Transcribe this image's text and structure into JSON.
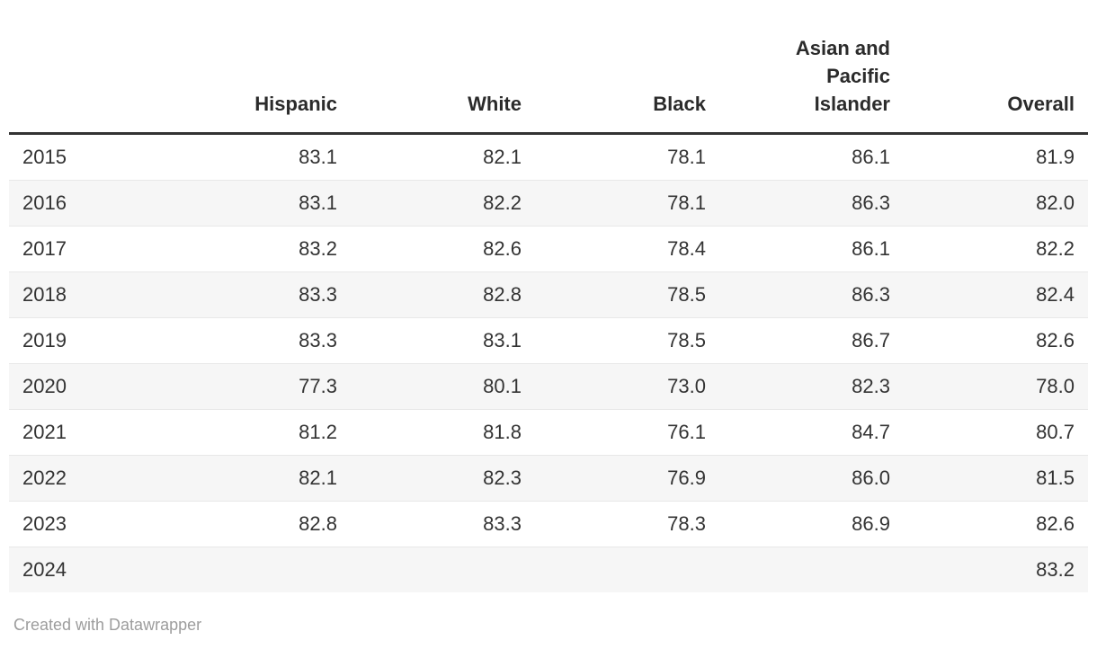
{
  "table": {
    "columns": [
      "",
      "Hispanic",
      "White",
      "Black",
      "Asian and Pacific Islander",
      "Overall"
    ],
    "rows": [
      {
        "year": "2015",
        "hispanic": "83.1",
        "white": "82.1",
        "black": "78.1",
        "asian_pacific_islander": "86.1",
        "overall": "81.9"
      },
      {
        "year": "2016",
        "hispanic": "83.1",
        "white": "82.2",
        "black": "78.1",
        "asian_pacific_islander": "86.3",
        "overall": "82.0"
      },
      {
        "year": "2017",
        "hispanic": "83.2",
        "white": "82.6",
        "black": "78.4",
        "asian_pacific_islander": "86.1",
        "overall": "82.2"
      },
      {
        "year": "2018",
        "hispanic": "83.3",
        "white": "82.8",
        "black": "78.5",
        "asian_pacific_islander": "86.3",
        "overall": "82.4"
      },
      {
        "year": "2019",
        "hispanic": "83.3",
        "white": "83.1",
        "black": "78.5",
        "asian_pacific_islander": "86.7",
        "overall": "82.6"
      },
      {
        "year": "2020",
        "hispanic": "77.3",
        "white": "80.1",
        "black": "73.0",
        "asian_pacific_islander": "82.3",
        "overall": "78.0"
      },
      {
        "year": "2021",
        "hispanic": "81.2",
        "white": "81.8",
        "black": "76.1",
        "asian_pacific_islander": "84.7",
        "overall": "80.7"
      },
      {
        "year": "2022",
        "hispanic": "82.1",
        "white": "82.3",
        "black": "76.9",
        "asian_pacific_islander": "86.0",
        "overall": "81.5"
      },
      {
        "year": "2023",
        "hispanic": "82.8",
        "white": "83.3",
        "black": "78.3",
        "asian_pacific_islander": "86.9",
        "overall": "82.6"
      },
      {
        "year": "2024",
        "hispanic": "",
        "white": "",
        "black": "",
        "asian_pacific_islander": "",
        "overall": "83.2"
      }
    ]
  },
  "footer": {
    "attribution": "Created with Datawrapper"
  },
  "colors": {
    "header_rule": "#333333",
    "row_divider": "#e8e8e8",
    "row_stripe": "#f6f6f6",
    "body_text": "#333333",
    "header_text": "#2b2b2b",
    "footer_text": "#9d9d9d"
  },
  "chart_data": {
    "type": "table",
    "columns": [
      "",
      "Hispanic",
      "White",
      "Black",
      "Asian and Pacific Islander",
      "Overall"
    ],
    "rows": [
      [
        "2015",
        83.1,
        82.1,
        78.1,
        86.1,
        81.9
      ],
      [
        "2016",
        83.1,
        82.2,
        78.1,
        86.3,
        82.0
      ],
      [
        "2017",
        83.2,
        82.6,
        78.4,
        86.1,
        82.2
      ],
      [
        "2018",
        83.3,
        82.8,
        78.5,
        86.3,
        82.4
      ],
      [
        "2019",
        83.3,
        83.1,
        78.5,
        86.7,
        82.6
      ],
      [
        "2020",
        77.3,
        80.1,
        73.0,
        82.3,
        78.0
      ],
      [
        "2021",
        81.2,
        81.8,
        76.1,
        84.7,
        80.7
      ],
      [
        "2022",
        82.1,
        82.3,
        76.9,
        86.0,
        81.5
      ],
      [
        "2023",
        82.8,
        83.3,
        78.3,
        86.9,
        82.6
      ],
      [
        "2024",
        null,
        null,
        null,
        null,
        83.2
      ]
    ],
    "title": "",
    "notes": "Striped data table, values shown to one decimal place; 2024 row has Overall value only."
  }
}
